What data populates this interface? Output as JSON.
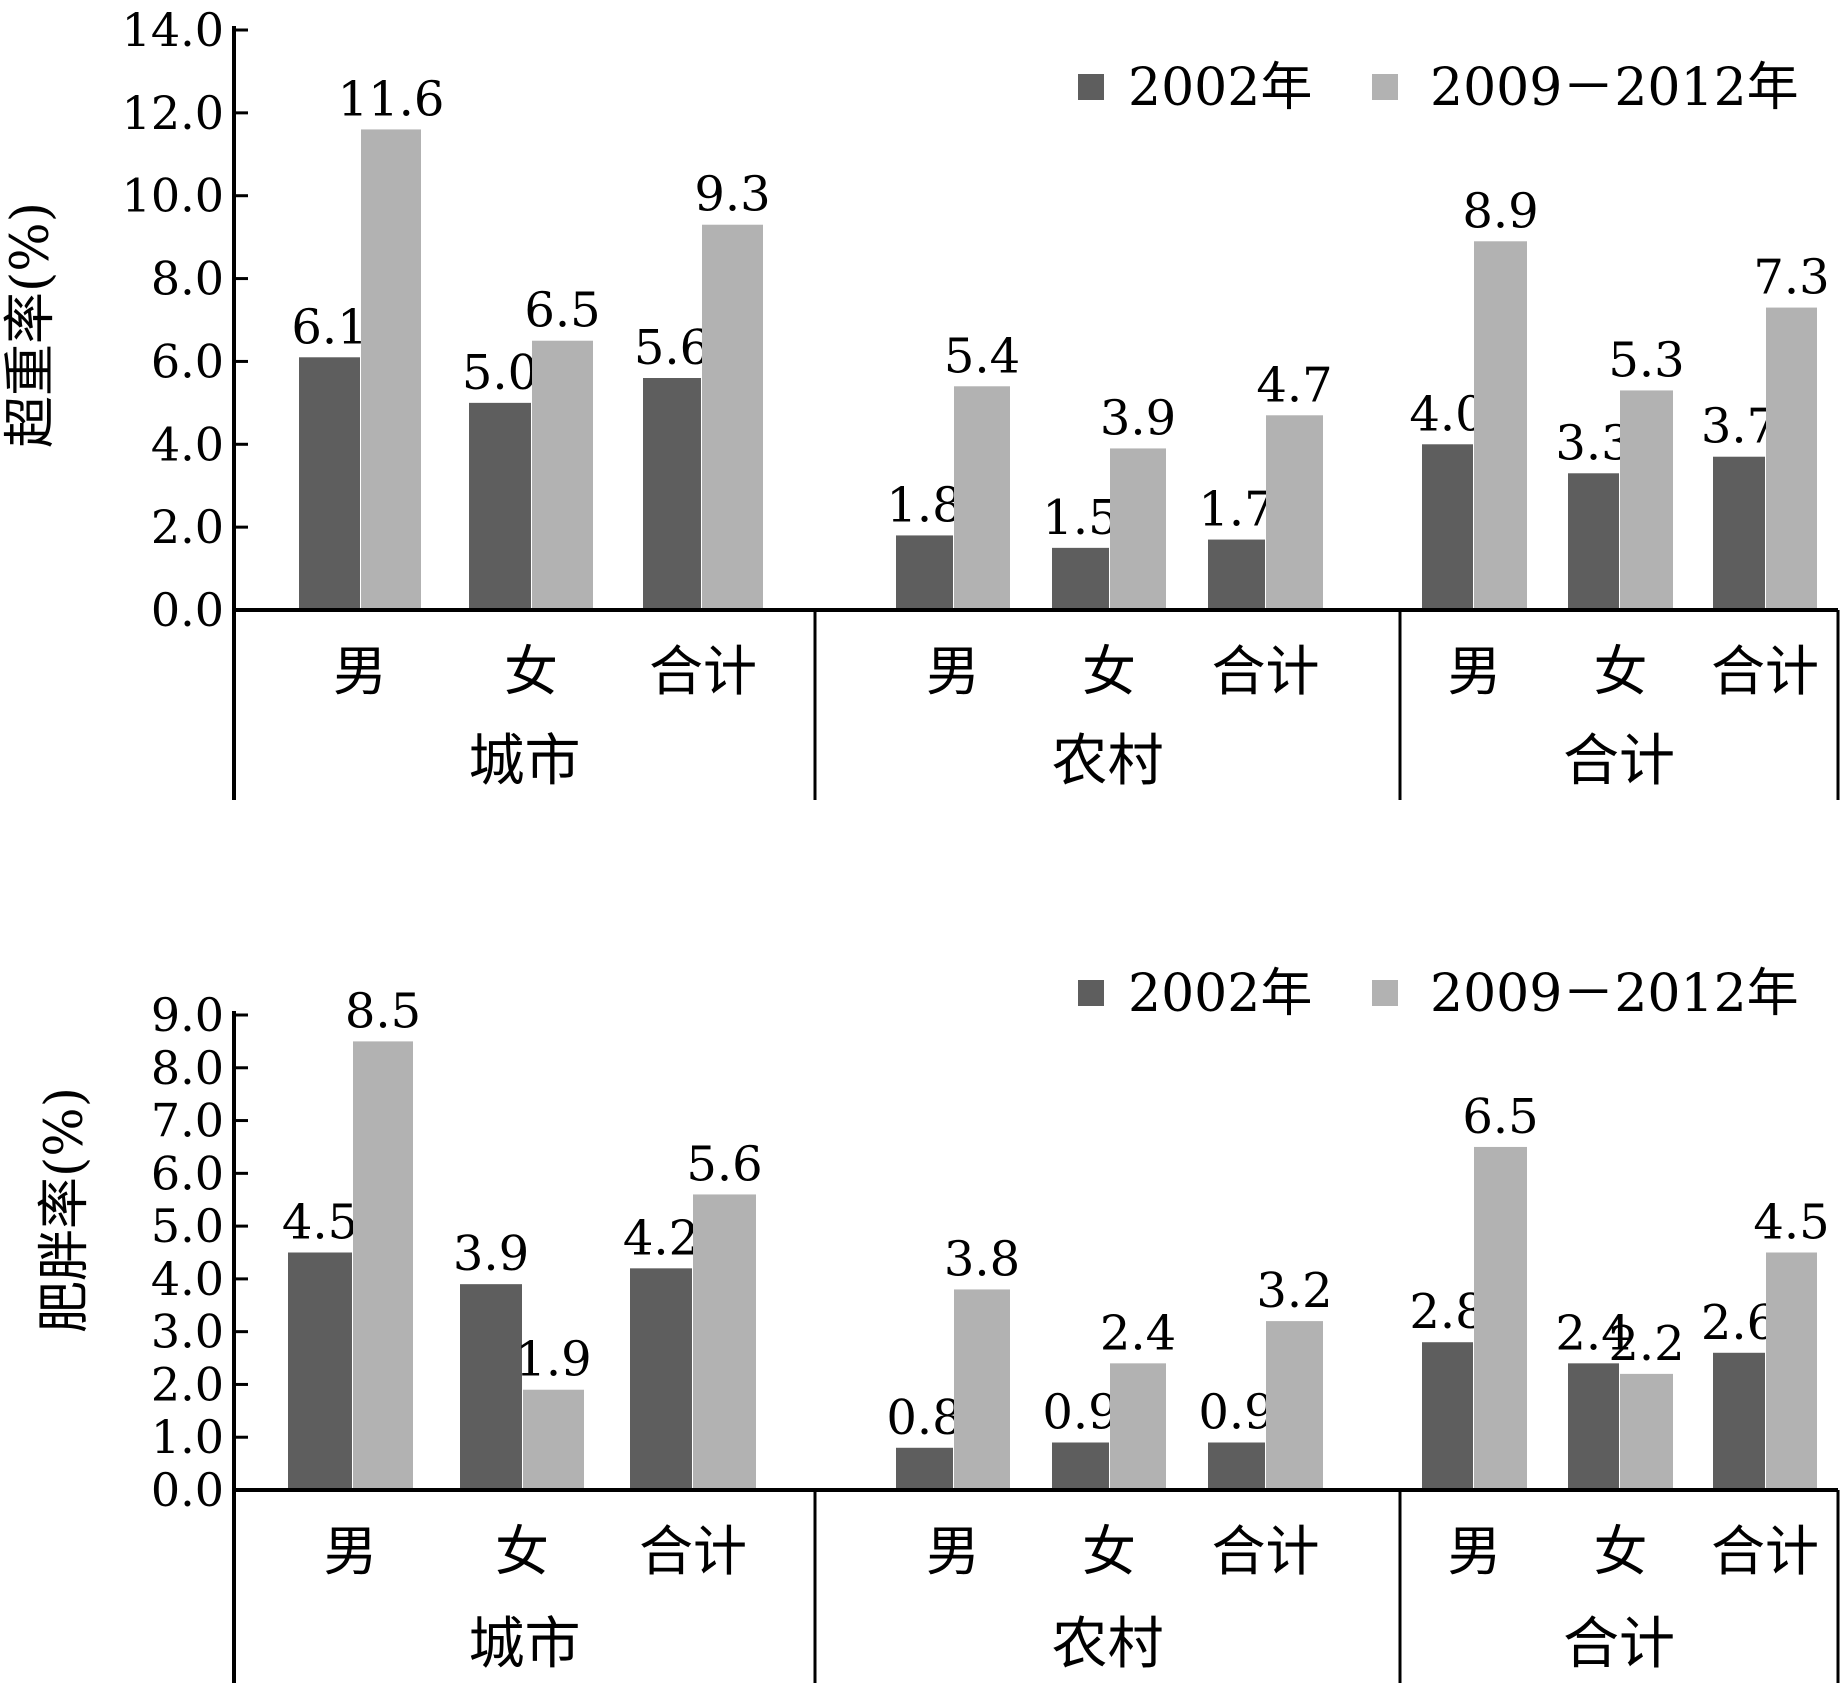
{
  "chart_data": [
    {
      "type": "bar",
      "ylabel": "超重率(%)",
      "ylim": [
        0,
        14
      ],
      "yticks": [
        "0.0",
        "2.0",
        "4.0",
        "6.0",
        "8.0",
        "10.0",
        "12.0",
        "14.0"
      ],
      "groups": [
        "城市",
        "农村",
        "合计"
      ],
      "categories": [
        "男",
        "女",
        "合计"
      ],
      "legend_position": "top-right",
      "series": [
        {
          "name": "2002年",
          "color": "#5e5e5e",
          "values": [
            [
              6.1,
              5.0,
              5.6
            ],
            [
              1.8,
              1.5,
              1.7
            ],
            [
              4.0,
              3.3,
              3.7
            ]
          ]
        },
        {
          "name": "2009－2012年",
          "color": "#b2b2b2",
          "values": [
            [
              11.6,
              6.5,
              9.3
            ],
            [
              5.4,
              3.9,
              4.7
            ],
            [
              8.9,
              5.3,
              7.3
            ]
          ]
        }
      ],
      "data_labels": [
        [
          [
            "6.1",
            "5.0",
            "5.6"
          ],
          [
            "1.8",
            "1.5",
            "1.7"
          ],
          [
            "4.0",
            "3.3",
            "3.7"
          ]
        ],
        [
          [
            "11.6",
            "6.5",
            "9.3"
          ],
          [
            "5.4",
            "3.9",
            "4.7"
          ],
          [
            "8.9",
            "5.3",
            "7.3"
          ]
        ]
      ]
    },
    {
      "type": "bar",
      "ylabel": "肥胖率(%)",
      "ylim": [
        0,
        9
      ],
      "yticks": [
        "0.0",
        "1.0",
        "2.0",
        "3.0",
        "4.0",
        "5.0",
        "6.0",
        "7.0",
        "8.0",
        "9.0"
      ],
      "groups": [
        "城市",
        "农村",
        "合计"
      ],
      "categories": [
        "男",
        "女",
        "合计"
      ],
      "legend_position": "top-right",
      "series": [
        {
          "name": "2002年",
          "color": "#5e5e5e",
          "values": [
            [
              4.5,
              3.9,
              4.2
            ],
            [
              0.8,
              0.9,
              0.9
            ],
            [
              2.8,
              2.4,
              2.6
            ]
          ]
        },
        {
          "name": "2009－2012年",
          "color": "#b2b2b2",
          "values": [
            [
              8.5,
              1.9,
              5.6
            ],
            [
              3.8,
              2.4,
              3.2
            ],
            [
              6.5,
              2.2,
              4.5
            ]
          ]
        }
      ],
      "data_labels": [
        [
          [
            "4.5",
            "3.9",
            "4.2"
          ],
          [
            "0.8",
            "0.9",
            "0.9"
          ],
          [
            "2.8",
            "2.4",
            "2.6"
          ]
        ],
        [
          [
            "8.5",
            "1.9",
            "5.6"
          ],
          [
            "3.8",
            "2.4",
            "3.2"
          ],
          [
            "6.5",
            "2.2",
            "4.5"
          ]
        ]
      ]
    }
  ]
}
